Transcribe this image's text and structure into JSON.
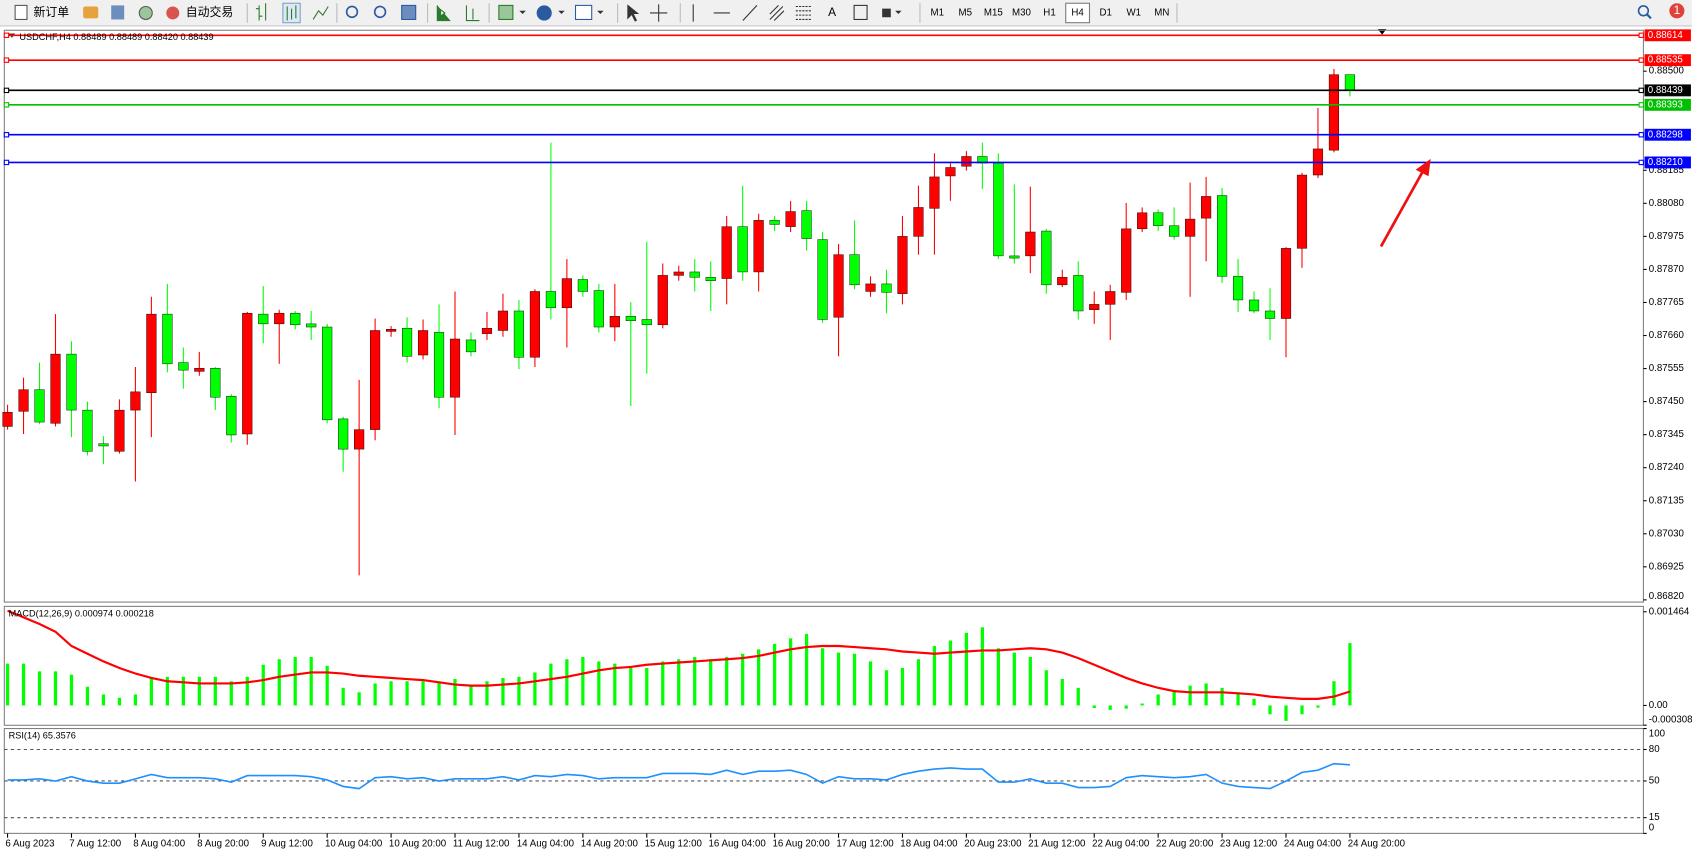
{
  "toolbar": {
    "new_order": "新订单",
    "auto_trading": "自动交易",
    "text_tool": "A",
    "timeframes": [
      "M1",
      "M5",
      "M15",
      "M30",
      "H1",
      "H4",
      "D1",
      "W1",
      "MN"
    ],
    "active_timeframe": "H4",
    "notifications": "1"
  },
  "chart_data": [
    {
      "type": "candlestick",
      "title": "USDCHF,H4  0.88489 0.88489 0.88420 0.88439",
      "categories": [
        "6 Aug 2023",
        null,
        null,
        null,
        "7 Aug 12:00",
        null,
        null,
        null,
        "8 Aug 04:00",
        null,
        null,
        null,
        "8 Aug 20:00",
        null,
        null,
        null,
        "9 Aug 12:00",
        null,
        null,
        null,
        "10 Aug 04:00",
        null,
        null,
        null,
        "10 Aug 20:00",
        null,
        null,
        null,
        "11 Aug 12:00",
        null,
        null,
        null,
        "14 Aug 04:00",
        null,
        null,
        null,
        "14 Aug 20:00",
        null,
        null,
        null,
        "15 Aug 12:00",
        null,
        null,
        null,
        "16 Aug 04:00",
        null,
        null,
        null,
        "16 Aug 20:00",
        null,
        null,
        null,
        "17 Aug 12:00",
        null,
        null,
        null,
        "18 Aug 04:00",
        null,
        null,
        null,
        "20 Aug 23:00",
        null,
        null,
        null,
        "21 Aug 12:00",
        null,
        null,
        null,
        "22 Aug 04:00",
        null,
        null,
        null,
        "22 Aug 20:00",
        null,
        null,
        null,
        "23 Aug 12:00",
        null,
        null,
        null,
        "24 Aug 04:00",
        null,
        null,
        null,
        "24 Aug 20:00"
      ],
      "open": [
        0.87371,
        0.87419,
        0.87488,
        0.87381,
        0.87601,
        0.87423,
        0.87316,
        0.87292,
        0.87423,
        0.87478,
        0.87728,
        0.87574,
        0.87546,
        0.87556,
        0.87467,
        0.87347,
        0.87728,
        0.87697,
        0.87731,
        0.87697,
        0.87687,
        0.87395,
        0.87299,
        0.87361,
        0.87673,
        0.87683,
        0.87598,
        0.8767,
        0.87464,
        0.87646,
        0.87666,
        0.87676,
        0.87738,
        0.87591,
        0.878,
        0.87748,
        0.87838,
        0.87803,
        0.87687,
        0.87721,
        0.87711,
        0.87694,
        0.87851,
        0.87862,
        0.87845,
        0.87841,
        0.88006,
        0.87862,
        0.88026,
        0.88006,
        0.88057,
        0.87965,
        0.87718,
        0.87917,
        0.878,
        0.87824,
        0.87793,
        0.87975,
        0.88064,
        0.88167,
        0.88198,
        0.88229,
        0.88208,
        0.87913,
        0.87913,
        0.87992,
        0.87821,
        0.87851,
        0.87742,
        0.87759,
        0.87797,
        0.87999,
        0.8805,
        0.88009,
        0.87975,
        0.88033,
        0.88105,
        0.87848,
        0.87773,
        0.87738,
        0.87714,
        0.87937,
        0.8817,
        0.88249,
        0.88489
      ],
      "high": [
        0.8744,
        0.87526,
        0.87574,
        0.87728,
        0.87642,
        0.8745,
        0.8734,
        0.87457,
        0.8756,
        0.87783,
        0.87824,
        0.87622,
        0.87608,
        0.8756,
        0.87474,
        0.87735,
        0.87817,
        0.87742,
        0.87738,
        0.87738,
        0.87697,
        0.87402,
        0.87519,
        0.87714,
        0.8769,
        0.87718,
        0.87711,
        0.87759,
        0.878,
        0.8767,
        0.87735,
        0.87793,
        0.87773,
        0.87807,
        0.88273,
        0.87903,
        0.87851,
        0.87824,
        0.87824,
        0.87766,
        0.87958,
        0.87889,
        0.87882,
        0.87903,
        0.87896,
        0.8804,
        0.88136,
        0.88047,
        0.8804,
        0.88088,
        0.88088,
        0.87989,
        0.87951,
        0.88026,
        0.87848,
        0.87869,
        0.8804,
        0.88136,
        0.88239,
        0.88212,
        0.88246,
        0.88273,
        0.88239,
        0.8814,
        0.88133,
        0.87999,
        0.87869,
        0.87896,
        0.878,
        0.87821,
        0.88081,
        0.88067,
        0.88061,
        0.88067,
        0.88146,
        0.88164,
        0.88129,
        0.87903,
        0.878,
        0.8781,
        0.87941,
        0.88177,
        0.88383,
        0.88507,
        0.88489
      ],
      "low": [
        0.87361,
        0.87347,
        0.87378,
        0.87371,
        0.87337,
        0.87279,
        0.87251,
        0.87285,
        0.87196,
        0.87337,
        0.87543,
        0.87491,
        0.87532,
        0.87423,
        0.8732,
        0.87313,
        0.87635,
        0.8757,
        0.8768,
        0.87646,
        0.87381,
        0.87227,
        0.86898,
        0.87327,
        0.87656,
        0.87574,
        0.87584,
        0.8743,
        0.87344,
        0.87594,
        0.87646,
        0.87656,
        0.87553,
        0.8756,
        0.87711,
        0.87622,
        0.87783,
        0.8767,
        0.87642,
        0.87436,
        0.87539,
        0.87683,
        0.87834,
        0.878,
        0.87738,
        0.87759,
        0.87834,
        0.878,
        0.87992,
        0.87989,
        0.8793,
        0.877,
        0.87594,
        0.87807,
        0.87783,
        0.87731,
        0.87759,
        0.87917,
        0.87917,
        0.88088,
        0.88184,
        0.88126,
        0.87903,
        0.87889,
        0.87858,
        0.87793,
        0.87814,
        0.87711,
        0.87697,
        0.87646,
        0.87773,
        0.87989,
        0.87992,
        0.87965,
        0.87783,
        0.87896,
        0.87827,
        0.87735,
        0.87731,
        0.87646,
        0.87591,
        0.87875,
        0.8816,
        0.88242,
        0.8842
      ],
      "close": [
        0.87416,
        0.87488,
        0.87385,
        0.87601,
        0.87423,
        0.87292,
        0.87309,
        0.87423,
        0.87481,
        0.87728,
        0.8757,
        0.8755,
        0.87556,
        0.87464,
        0.87344,
        0.87731,
        0.87697,
        0.87731,
        0.87694,
        0.87687,
        0.87392,
        0.87299,
        0.87361,
        0.87676,
        0.8768,
        0.87594,
        0.87676,
        0.87464,
        0.87649,
        0.87608,
        0.87683,
        0.87738,
        0.87591,
        0.878,
        0.87748,
        0.87841,
        0.878,
        0.87687,
        0.87721,
        0.87707,
        0.87694,
        0.87851,
        0.87862,
        0.87845,
        0.87834,
        0.88006,
        0.87862,
        0.88026,
        0.88013,
        0.88054,
        0.87968,
        0.87711,
        0.87917,
        0.87821,
        0.87824,
        0.87797,
        0.87975,
        0.88067,
        0.88164,
        0.88194,
        0.88229,
        0.88208,
        0.87913,
        0.87906,
        0.87989,
        0.87821,
        0.87845,
        0.87738,
        0.87759,
        0.878,
        0.87999,
        0.8805,
        0.88009,
        0.87975,
        0.8803,
        0.88102,
        0.87848,
        0.87773,
        0.87738,
        0.87714,
        0.87937,
        0.8817,
        0.88253,
        0.88489,
        0.88439
      ],
      "up_color": "#ff0000",
      "down_color": "#00ff00",
      "ylim": [
        0.86813,
        0.8863
      ],
      "yticks": [
        {
          "value": 0.885,
          "label": "0.88500"
        },
        0.88185,
        {
          "value": 0.8808,
          "label": "0.88080"
        },
        0.87975,
        {
          "value": 0.8787,
          "label": "0.87870"
        },
        0.87765,
        {
          "value": 0.8766,
          "label": "0.87660"
        },
        0.87555,
        {
          "value": 0.8745,
          "label": "0.87450"
        },
        0.87345,
        {
          "value": 0.8724,
          "label": "0.87240"
        },
        0.87135,
        {
          "value": 0.8703,
          "label": "0.87030"
        },
        0.86925,
        {
          "value": 0.8682,
          "label": "0.86820"
        }
      ],
      "hlines": [
        {
          "value": 0.88614,
          "color": "#ff0000"
        },
        {
          "value": 0.88535,
          "color": "#ff0000"
        },
        {
          "value": 0.88439,
          "color": "#000000"
        },
        {
          "value": 0.88393,
          "color": "#00c000"
        },
        {
          "value": 0.88298,
          "color": "#0000ff"
        },
        {
          "value": 0.8821,
          "label": "0.88210",
          "color": "#0000ff"
        }
      ]
    },
    {
      "type": "macd",
      "title": "MACD(12,26,9) 0.000974 0.000218",
      "histogram": {
        "color": "#00ff00",
        "values": [
          0.000654,
          0.000654,
          0.000533,
          0.000533,
          0.000482,
          0.000292,
          0.000172,
          0.00012,
          0.000172,
          0.00043,
          0.000447,
          0.000447,
          0.000447,
          0.000447,
          0.000378,
          0.000447,
          0.000636,
          0.000722,
          0.000757,
          0.000757,
          0.000619,
          0.000275,
          0.000206,
          0.000344,
          0.000378,
          0.000378,
          0.000378,
          0.000378,
          0.000413,
          0.000327,
          0.000378,
          0.00043,
          0.000447,
          0.000516,
          0.000654,
          0.000722,
          0.000757,
          0.000688,
          0.000654,
          0.000585,
          0.000585,
          0.000688,
          0.000722,
          0.000757,
          0.000722,
          0.000757,
          0.000808,
          0.000877,
          0.000963,
          0.001049,
          0.001118,
          0.000894,
          0.000826,
          0.000808,
          0.000688,
          0.00055,
          0.000585,
          0.000722,
          0.000929,
          0.001015,
          0.001135,
          0.001221,
          0.000894,
          0.000826,
          0.000757,
          0.00055,
          0.000413,
          0.000275,
          -4e-05,
          -6.9e-05,
          -5e-05,
          3e-05,
          0.000172,
          0.000241,
          0.00031,
          0.000344,
          0.000275,
          0.000206,
          0.000103,
          -0.000138,
          -0.000241,
          -0.000138,
          -3.4e-05,
          0.000378,
          0.000974
        ]
      },
      "signal": {
        "color": "#ff0000",
        "values": [
          0.001479,
          0.001376,
          0.001273,
          0.001152,
          0.000929,
          0.000808,
          0.000688,
          0.000585,
          0.000499,
          0.00043,
          0.000378,
          0.000361,
          0.000344,
          0.000344,
          0.000344,
          0.000361,
          0.000396,
          0.000447,
          0.000482,
          0.000516,
          0.000516,
          0.000499,
          0.000464,
          0.000447,
          0.00043,
          0.000413,
          0.000396,
          0.000361,
          0.000327,
          0.00031,
          0.00031,
          0.000327,
          0.000344,
          0.000378,
          0.000413,
          0.000447,
          0.000499,
          0.00055,
          0.000585,
          0.000602,
          0.000636,
          0.000654,
          0.000671,
          0.000688,
          0.000705,
          0.000722,
          0.00074,
          0.000774,
          0.000826,
          0.000877,
          0.000912,
          0.000929,
          0.000929,
          0.000912,
          0.000894,
          0.000877,
          0.000843,
          0.000826,
          0.000808,
          0.000826,
          0.000843,
          0.00086,
          0.00086,
          0.000877,
          0.000894,
          0.000877,
          0.000826,
          0.00074,
          0.000636,
          0.000533,
          0.00043,
          0.000344,
          0.000275,
          0.000224,
          0.000206,
          0.000206,
          0.000206,
          0.000189,
          0.000172,
          0.000138,
          0.00012,
          0.000103,
          0.000103,
          0.000138,
          0.000218
        ]
      },
      "ylim": [
        -0.00031,
        0.001548
      ],
      "yticks": [
        0.001464,
        {
          "value": 0,
          "label": "0.00"
        },
        -0.000308
      ]
    },
    {
      "type": "line",
      "title": "RSI(14) 65.3576",
      "color": "#1e90ff",
      "values": [
        51.0,
        51.0,
        52.0,
        49.9,
        54.1,
        49.9,
        47.9,
        47.9,
        52.0,
        56.2,
        53.1,
        53.1,
        53.1,
        52.0,
        48.9,
        55.1,
        55.1,
        55.1,
        55.1,
        54.1,
        51.0,
        44.8,
        42.7,
        53.1,
        54.1,
        52.0,
        53.1,
        49.9,
        52.0,
        52.0,
        52.0,
        54.1,
        51.0,
        55.1,
        54.1,
        56.2,
        55.1,
        52.0,
        53.1,
        53.1,
        53.1,
        57.2,
        57.2,
        57.2,
        56.2,
        60.3,
        56.2,
        59.3,
        59.3,
        60.3,
        56.2,
        47.9,
        54.1,
        52.0,
        52.0,
        51.0,
        56.2,
        59.3,
        61.3,
        62.4,
        61.3,
        61.3,
        48.9,
        48.9,
        52.0,
        47.9,
        47.9,
        43.7,
        43.7,
        44.8,
        53.1,
        55.1,
        54.1,
        53.1,
        54.1,
        56.2,
        47.9,
        44.8,
        43.7,
        42.7,
        49.9,
        58.2,
        60.3,
        66.5,
        65.36
      ],
      "ylim": [
        0,
        100
      ],
      "yticks": [
        100,
        80,
        50,
        15,
        0
      ],
      "grid": "dashed"
    }
  ]
}
